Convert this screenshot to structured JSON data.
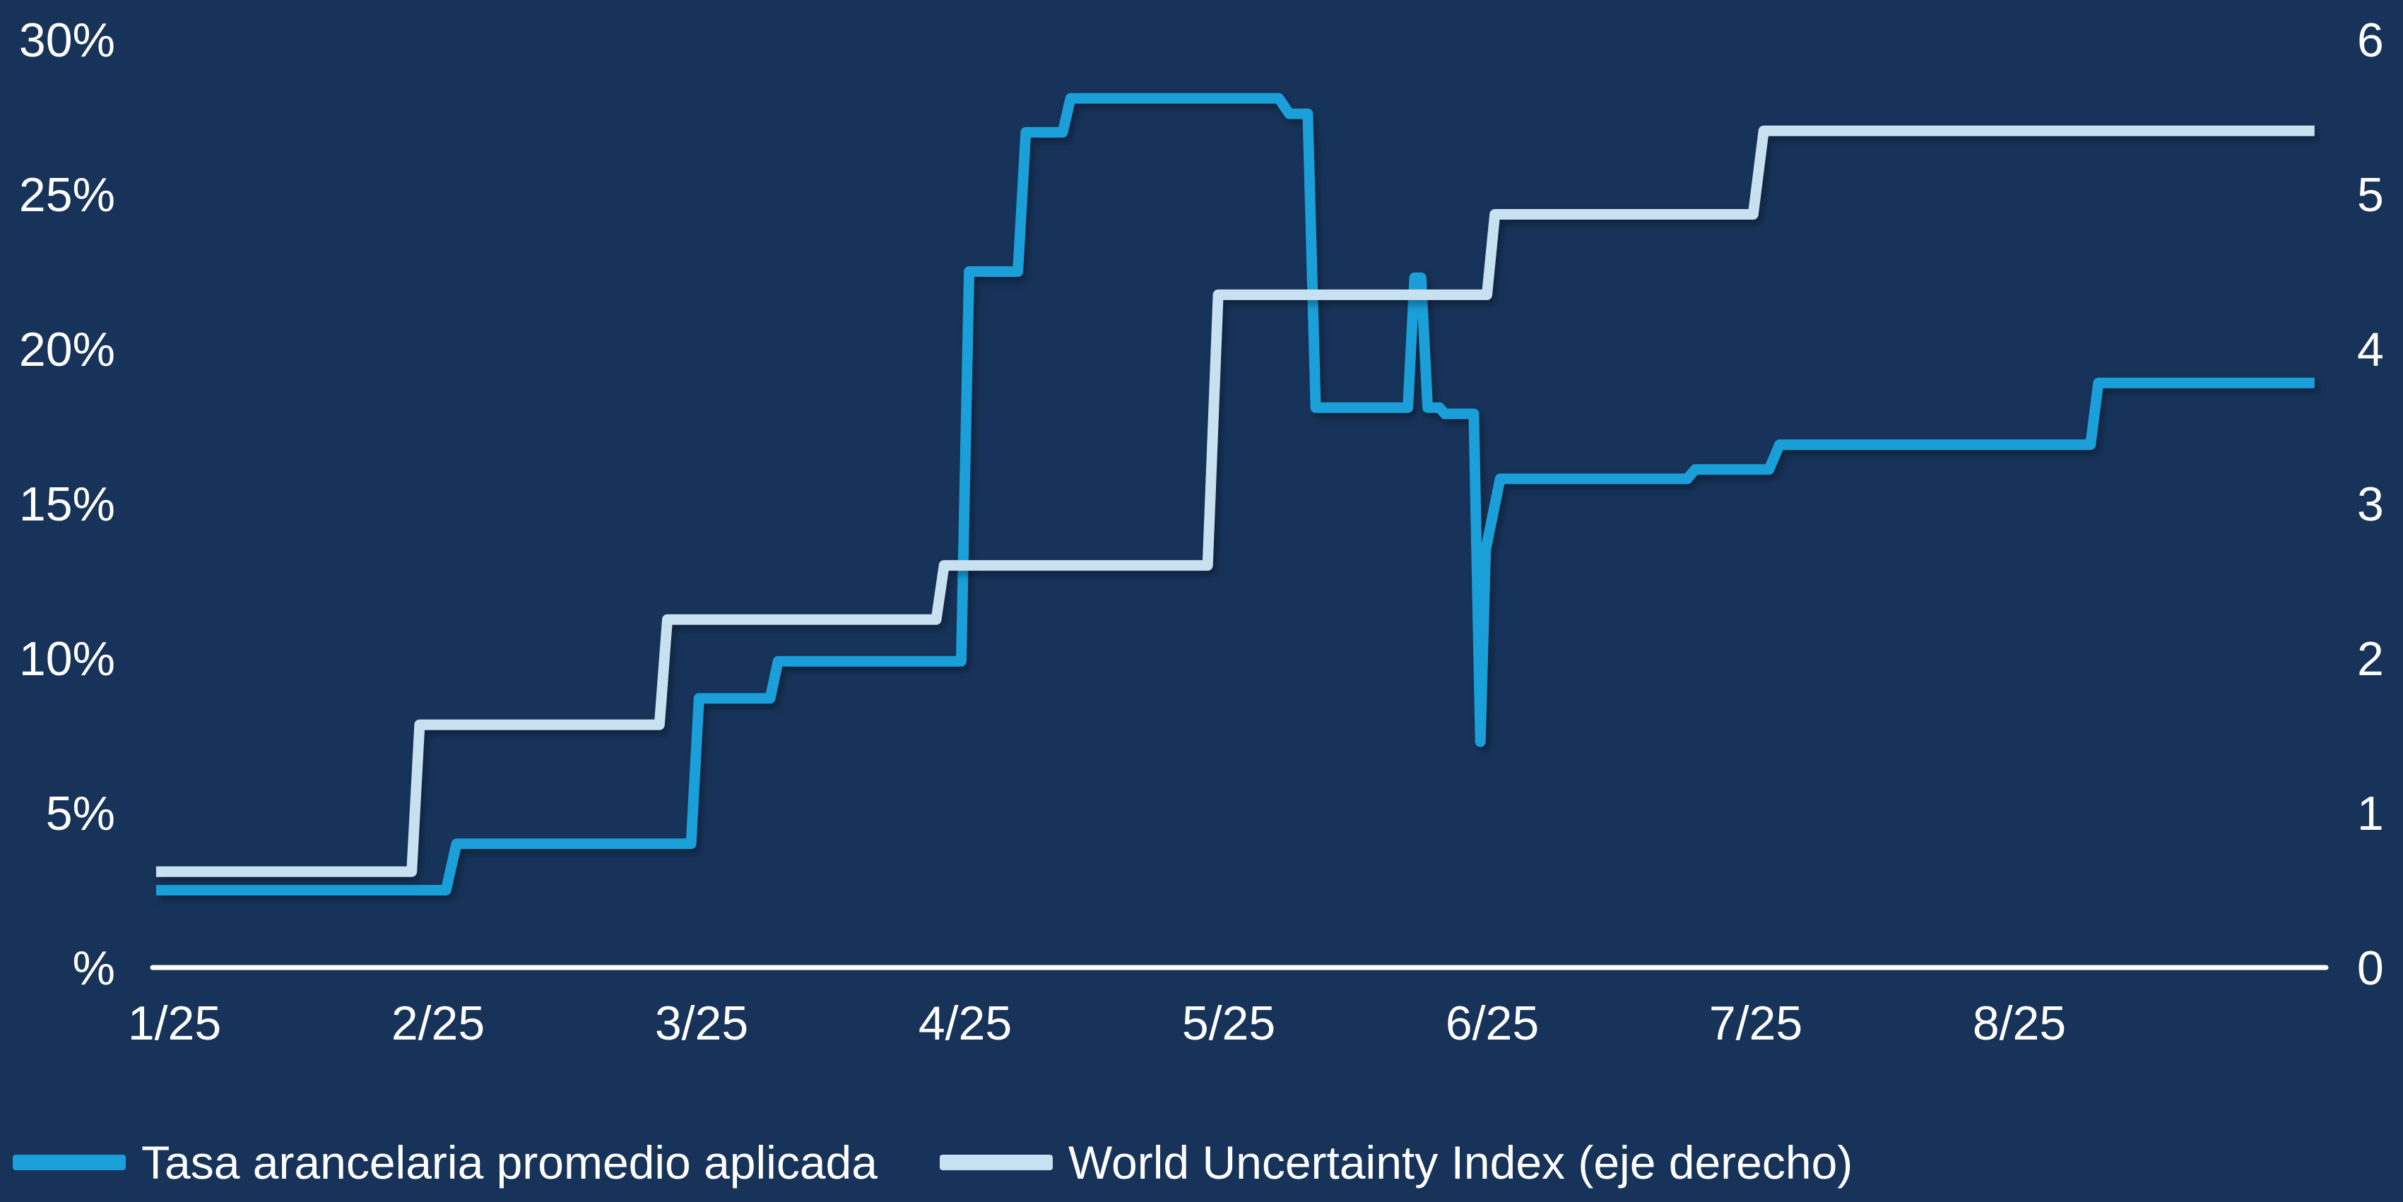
{
  "background_color": "#17335A",
  "axis_text_color": "#FFFFFF",
  "axis_line_color": "#FFFFFF",
  "left_axis_ticks": [
    {
      "label": "30%",
      "value": 30
    },
    {
      "label": "25%",
      "value": 25
    },
    {
      "label": "20%",
      "value": 20
    },
    {
      "label": "15%",
      "value": 15
    },
    {
      "label": "10%",
      "value": 10
    },
    {
      "label": "5%",
      "value": 5
    },
    {
      "label": "%",
      "value": 0
    }
  ],
  "right_axis_ticks": [
    {
      "label": "6",
      "value": 6
    },
    {
      "label": "5",
      "value": 5
    },
    {
      "label": "4",
      "value": 4
    },
    {
      "label": "3",
      "value": 3
    },
    {
      "label": "2",
      "value": 2
    },
    {
      "label": "1",
      "value": 1
    },
    {
      "label": "0",
      "value": 0
    }
  ],
  "x_axis_ticks": [
    {
      "label": "1/25",
      "month": 1
    },
    {
      "label": "2/25",
      "month": 2
    },
    {
      "label": "3/25",
      "month": 3
    },
    {
      "label": "4/25",
      "month": 4
    },
    {
      "label": "5/25",
      "month": 5
    },
    {
      "label": "6/25",
      "month": 6
    },
    {
      "label": "7/25",
      "month": 7
    },
    {
      "label": "8/25",
      "month": 8
    }
  ],
  "chart_data": {
    "type": "line",
    "title": "",
    "xlabel": "",
    "ylabel_left": "%",
    "left_axis": {
      "min": 0,
      "max": 30,
      "tick_step": 5,
      "unit": "%"
    },
    "right_axis": {
      "min": 0,
      "max": 6,
      "tick_step": 1
    },
    "x_axis": {
      "unit": "month/25",
      "min": 0.93,
      "max": 9.12,
      "grid": false
    },
    "legend_position": "bottom-left",
    "series": [
      {
        "name": "Tasa arancelaria promedio aplicada",
        "axis": "left",
        "color": "#1A9FD9",
        "stroke_width": 15,
        "points_month_value": [
          [
            0.93,
            2.5
          ],
          [
            2.03,
            2.5
          ],
          [
            2.07,
            4.0
          ],
          [
            2.96,
            4.0
          ],
          [
            2.99,
            8.7
          ],
          [
            3.26,
            8.7
          ],
          [
            3.29,
            9.9
          ],
          [
            3.985,
            9.9
          ],
          [
            4.015,
            22.5
          ],
          [
            4.2,
            22.5
          ],
          [
            4.23,
            27.0
          ],
          [
            4.37,
            27.0
          ],
          [
            4.4,
            28.1
          ],
          [
            5.19,
            28.1
          ],
          [
            5.23,
            27.6
          ],
          [
            5.3,
            27.6
          ],
          [
            5.33,
            18.1
          ],
          [
            5.68,
            18.1
          ],
          [
            5.705,
            22.3
          ],
          [
            5.73,
            22.3
          ],
          [
            5.755,
            18.1
          ],
          [
            5.8,
            18.1
          ],
          [
            5.82,
            17.9
          ],
          [
            5.93,
            17.9
          ],
          [
            5.955,
            7.3
          ],
          [
            5.975,
            13.5
          ],
          [
            6.03,
            15.8
          ],
          [
            6.74,
            15.8
          ],
          [
            6.77,
            16.1
          ],
          [
            7.05,
            16.1
          ],
          [
            7.09,
            16.9
          ],
          [
            8.27,
            16.9
          ],
          [
            8.3,
            18.9
          ],
          [
            9.12,
            18.9
          ]
        ]
      },
      {
        "name": "World Uncertainty Index (eje derecho)",
        "axis": "right",
        "color": "#C8E1F0",
        "stroke_width": 15,
        "points_month_value": [
          [
            0.93,
            0.62
          ],
          [
            1.9,
            0.62
          ],
          [
            1.93,
            1.57
          ],
          [
            2.84,
            1.57
          ],
          [
            2.87,
            2.25
          ],
          [
            3.89,
            2.25
          ],
          [
            3.92,
            2.6
          ],
          [
            4.92,
            2.6
          ],
          [
            4.96,
            4.35
          ],
          [
            5.98,
            4.35
          ],
          [
            6.01,
            4.87
          ],
          [
            6.99,
            4.87
          ],
          [
            7.03,
            5.41
          ],
          [
            9.12,
            5.41
          ]
        ]
      }
    ]
  },
  "legend": {
    "items": [
      {
        "label": "Tasa arancelaria promedio aplicada",
        "color": "#1A9FD9"
      },
      {
        "label": "World Uncertainty Index (eje derecho)",
        "color": "#C8E1F0"
      }
    ]
  }
}
